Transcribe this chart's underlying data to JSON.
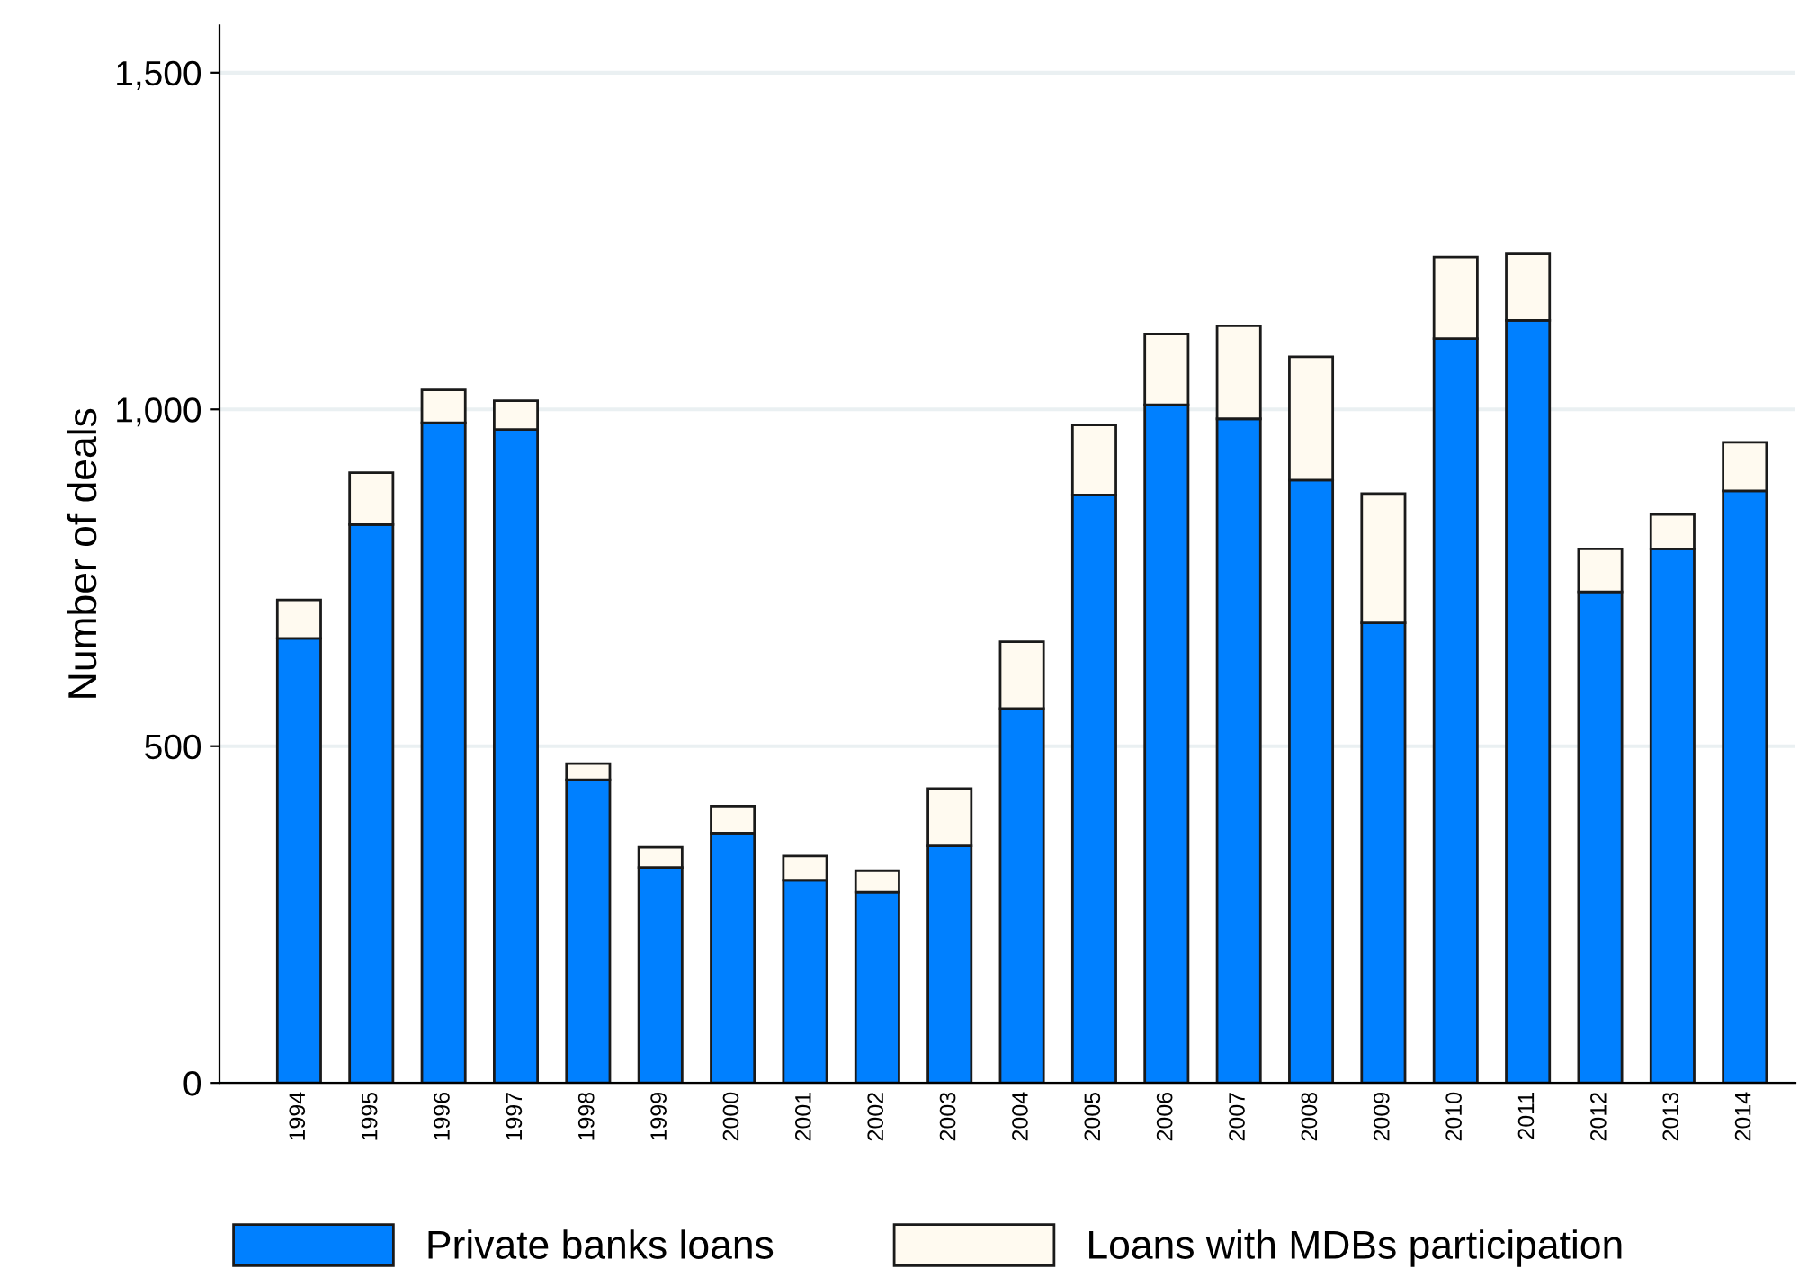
{
  "chart_data": {
    "type": "bar",
    "ylabel": "Number of deals",
    "categories": [
      "1994",
      "1995",
      "1996",
      "1997",
      "1998",
      "1999",
      "2000",
      "2001",
      "2002",
      "2003",
      "2004",
      "2005",
      "2006",
      "2007",
      "2008",
      "2009",
      "2010",
      "2011",
      "2012",
      "2013",
      "2014"
    ],
    "stacked": true,
    "series": [
      {
        "name": "Private banks loans",
        "color": "#0080ff",
        "values": [
          660,
          829,
          980,
          970,
          450,
          320,
          371,
          301,
          283,
          352,
          556,
          873,
          1007,
          986,
          895,
          683,
          1105,
          1132,
          729,
          793,
          879
        ]
      },
      {
        "name": "Loans with MDBs participation",
        "color": "#fffaf0",
        "values": [
          57,
          77,
          49,
          43,
          24,
          30,
          40,
          36,
          32,
          85,
          99,
          104,
          105,
          138,
          183,
          192,
          121,
          100,
          64,
          51,
          72
        ]
      }
    ],
    "ylim": [
      0,
      1570
    ],
    "yticks": [
      0,
      {
        "value": 500,
        "label": "500"
      },
      {
        "value": 1000,
        "label": "1,000"
      },
      {
        "value": 1500,
        "label": "1,500"
      }
    ],
    "grid": "y",
    "legend": "bottom"
  }
}
